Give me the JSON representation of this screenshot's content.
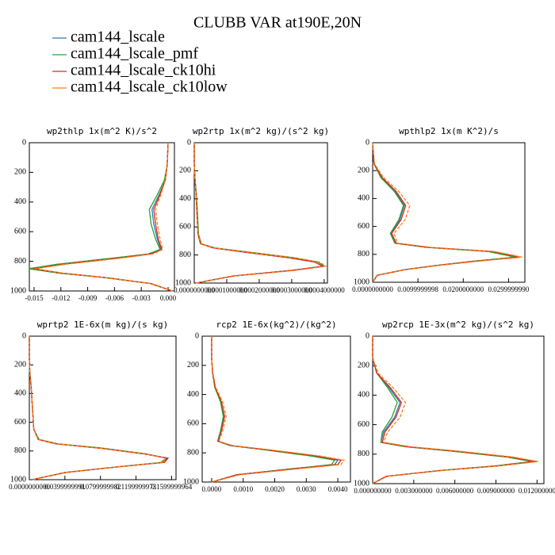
{
  "title": "CLUBB VAR at190E,20N",
  "legend": [
    {
      "name": "cam144_lscale",
      "color": "#2b7bb9"
    },
    {
      "name": "cam144_lscale_pmf",
      "color": "#2ca02c"
    },
    {
      "name": "cam144_lscale_ck10hi",
      "color": "#d62728"
    },
    {
      "name": "cam144_lscale_ck10low",
      "color": "#ff7f0e"
    }
  ],
  "chart_data": [
    {
      "type": "line",
      "title": "wp2thlp  1x(m^2 K)/s^2",
      "y_reversed": true,
      "y": [
        0,
        150,
        250,
        350,
        450,
        550,
        650,
        720,
        750,
        780,
        820,
        850,
        880,
        910,
        950,
        1000
      ],
      "ylim": [
        0,
        1000
      ],
      "yticks": [
        0,
        200,
        400,
        600,
        800,
        1000
      ],
      "xlim": [
        -0.01553,
        0.00071
      ],
      "xticks": [
        -0.015,
        -0.012,
        -0.009,
        -0.006,
        -0.003,
        {
          "value": 0,
          "label": "0.000"
        }
      ],
      "series": [
        {
          "values": [
            0,
            -0.0001,
            -0.0003,
            -0.001,
            -0.0018,
            -0.0016,
            -0.0012,
            -0.0008,
            -0.002,
            -0.006,
            -0.012,
            -0.0152,
            -0.012,
            -0.007,
            -0.002,
            0.0005
          ]
        },
        {
          "values": [
            0,
            -0.0001,
            -0.0004,
            -0.0012,
            -0.0021,
            -0.0019,
            -0.0014,
            -0.0009,
            -0.0022,
            -0.0065,
            -0.0125,
            -0.0156,
            -0.0122,
            -0.0071,
            -0.002,
            0.0005
          ]
        },
        {
          "values": [
            0,
            -0.0001,
            -0.0003,
            -0.0009,
            -0.0016,
            -0.0014,
            -0.0011,
            -0.0007,
            -0.0019,
            -0.0058,
            -0.0118,
            -0.015,
            -0.0118,
            -0.0069,
            -0.0019,
            0.0005
          ]
        },
        {
          "values": [
            0,
            -0.0001,
            -0.0003,
            -0.0008,
            -0.0014,
            -0.0012,
            -0.0009,
            -0.0006,
            -0.0017,
            -0.0055,
            -0.0115,
            -0.0149,
            -0.0119,
            -0.007,
            -0.002,
            0.0005
          ]
        }
      ]
    },
    {
      "type": "line",
      "title": "wp2rtp  1x(m^2 kg)/(s^2 kg)",
      "y_reversed": true,
      "y": [
        0,
        150,
        250,
        350,
        450,
        550,
        650,
        720,
        750,
        780,
        820,
        850,
        880,
        910,
        950,
        1000
      ],
      "ylim": [
        0,
        1000
      ],
      "yticks": [
        0,
        200,
        400,
        600,
        800,
        1000
      ],
      "xlim": [
        0,
        0.00041
      ],
      "xticks": [
        {
          "value": 0,
          "label": "0.0000000000"
        },
        {
          "value": 0.0001,
          "label": "0.0001000000"
        },
        {
          "value": 0.0002,
          "label": "0.0002000000"
        },
        {
          "value": 0.0003,
          "label": "0.0003000000"
        },
        {
          "value": 0.0004,
          "label": "0.0004000000"
        }
      ],
      "series": [
        {
          "values": [
            0,
            0,
            2e-06,
            5e-06,
            8e-06,
            1e-05,
            1.2e-05,
            2e-05,
            6e-05,
            0.00016,
            0.0003,
            0.00038,
            0.0004,
            0.0003,
            0.00012,
            5e-06
          ]
        },
        {
          "values": [
            0,
            0,
            2e-06,
            6e-06,
            9e-06,
            1.1e-05,
            1.3e-05,
            2.2e-05,
            6.5e-05,
            0.00017,
            0.00031,
            0.00038,
            0.0004,
            0.0003,
            0.00012,
            5e-06
          ]
        },
        {
          "values": [
            0,
            0,
            2e-06,
            5e-06,
            7e-06,
            9e-06,
            1.1e-05,
            1.9e-05,
            5.8e-05,
            0.000155,
            0.00029,
            0.00037,
            0.000395,
            0.0003,
            0.00012,
            5e-06
          ]
        },
        {
          "values": [
            0,
            0,
            2e-06,
            5e-06,
            7e-06,
            9e-06,
            1.2e-05,
            2.1e-05,
            6.2e-05,
            0.000165,
            0.000305,
            0.000385,
            0.000405,
            0.00031,
            0.000125,
            5e-06
          ]
        }
      ]
    },
    {
      "type": "line",
      "title": "wpthlp2  1x(m K^2)/s",
      "y_reversed": true,
      "y": [
        0,
        150,
        250,
        350,
        450,
        550,
        650,
        720,
        750,
        780,
        820,
        850,
        880,
        910,
        950,
        1000
      ],
      "ylim": [
        0,
        1000
      ],
      "yticks": [
        0,
        200,
        400,
        600,
        800,
        1000
      ],
      "xlim": [
        0,
        0.0336
      ],
      "xticks": [
        {
          "value": 0,
          "label": "0.0000000000"
        },
        {
          "value": 0.01,
          "label": "0.0099999998"
        },
        {
          "value": 0.02,
          "label": "0.0200000000"
        },
        {
          "value": 0.03,
          "label": "0.0299999990"
        }
      ],
      "series": [
        {
          "values": [
            0,
            0.0003,
            0.002,
            0.005,
            0.007,
            0.006,
            0.004,
            0.005,
            0.012,
            0.026,
            0.032,
            0.022,
            0.014,
            0.007,
            0.001,
            0
          ]
        },
        {
          "values": [
            0,
            0.0003,
            0.0018,
            0.0048,
            0.0068,
            0.0058,
            0.0039,
            0.0049,
            0.0118,
            0.0255,
            0.0315,
            0.0218,
            0.0139,
            0.007,
            0.001,
            0
          ]
        },
        {
          "values": [
            0,
            0.0003,
            0.0021,
            0.0052,
            0.0073,
            0.0063,
            0.0042,
            0.0052,
            0.0124,
            0.0265,
            0.0325,
            0.0224,
            0.0141,
            0.0071,
            0.001,
            0
          ]
        },
        {
          "values": [
            0,
            0.0004,
            0.0024,
            0.0058,
            0.0082,
            0.0072,
            0.0047,
            0.0055,
            0.013,
            0.027,
            0.033,
            0.023,
            0.0145,
            0.0073,
            0.0011,
            0
          ]
        }
      ]
    },
    {
      "type": "line",
      "title": "wprtp2  1E-6x(m kg)/(s kg)",
      "y_reversed": true,
      "y": [
        0,
        150,
        250,
        350,
        450,
        550,
        650,
        720,
        750,
        780,
        820,
        850,
        880,
        910,
        950,
        1000
      ],
      "ylim": [
        0,
        1000
      ],
      "yticks": [
        0,
        200,
        400,
        600,
        800,
        1000
      ],
      "xlim": [
        0,
        0.165
      ],
      "xticks": [
        {
          "value": 0,
          "label": "0.0000000000"
        },
        {
          "value": 0.04,
          "label": "0.0399999991"
        },
        {
          "value": 0.08,
          "label": "0.0799999982"
        },
        {
          "value": 0.12,
          "label": "0.1199999973"
        },
        {
          "value": 0.16,
          "label": "0.1599999964"
        }
      ],
      "series": [
        {
          "values": [
            0,
            0,
            0.0005,
            0.002,
            0.003,
            0.004,
            0.005,
            0.01,
            0.03,
            0.08,
            0.13,
            0.155,
            0.15,
            0.1,
            0.04,
            0.003
          ]
        },
        {
          "values": [
            0,
            0,
            0.0005,
            0.002,
            0.003,
            0.004,
            0.005,
            0.011,
            0.032,
            0.082,
            0.131,
            0.154,
            0.148,
            0.099,
            0.04,
            0.003
          ]
        },
        {
          "values": [
            0,
            0,
            0.0005,
            0.002,
            0.003,
            0.004,
            0.005,
            0.01,
            0.029,
            0.078,
            0.128,
            0.156,
            0.152,
            0.101,
            0.041,
            0.003
          ]
        },
        {
          "values": [
            0,
            0,
            0.0005,
            0.002,
            0.003,
            0.004,
            0.005,
            0.01,
            0.03,
            0.079,
            0.129,
            0.153,
            0.151,
            0.1,
            0.04,
            0.003
          ]
        }
      ]
    },
    {
      "type": "line",
      "title": "rcp2  1E-6x(kg^2)/(kg^2)",
      "y_reversed": true,
      "y": [
        0,
        150,
        250,
        350,
        450,
        550,
        650,
        720,
        750,
        780,
        820,
        850,
        880,
        910,
        950,
        1000
      ],
      "ylim": [
        0,
        1000
      ],
      "yticks": [
        0,
        200,
        400,
        600,
        800,
        1000
      ],
      "xlim": [
        -0.0003,
        0.0044
      ],
      "xticks": [
        {
          "value": 0,
          "label": "0.0000"
        },
        {
          "value": 0.001,
          "label": "0.0010"
        },
        {
          "value": 0.002,
          "label": "0.0020"
        },
        {
          "value": 0.003,
          "label": "0.0030"
        },
        {
          "value": 0.004,
          "label": "0.0040"
        }
      ],
      "series": [
        {
          "values": [
            0,
            0,
            3e-05,
            0.0001,
            0.0003,
            0.0004,
            0.0003,
            0.0002,
            0.0006,
            0.0018,
            0.0032,
            0.004,
            0.0039,
            0.0025,
            0.0008,
            0
          ]
        },
        {
          "values": [
            0,
            0,
            3e-05,
            0.0001,
            0.00028,
            0.00037,
            0.00028,
            0.00019,
            0.00058,
            0.0017,
            0.0031,
            0.0039,
            0.0038,
            0.0025,
            0.0008,
            0
          ]
        },
        {
          "values": [
            0,
            0,
            3e-05,
            0.00011,
            0.00031,
            0.00041,
            0.00031,
            0.00021,
            0.00062,
            0.0018,
            0.0033,
            0.0041,
            0.004,
            0.0026,
            0.0008,
            0
          ]
        },
        {
          "values": [
            0,
            0,
            4e-05,
            0.00013,
            0.00035,
            0.00046,
            0.00035,
            0.00023,
            0.00066,
            0.0019,
            0.0034,
            0.0042,
            0.0041,
            0.0027,
            0.0009,
            0
          ]
        }
      ]
    },
    {
      "type": "line",
      "title": "wp2rcp  1E-3x(m^2 kg)/(s^2 kg)",
      "y_reversed": true,
      "y": [
        0,
        150,
        250,
        350,
        450,
        550,
        650,
        720,
        750,
        780,
        820,
        850,
        880,
        910,
        950,
        1000
      ],
      "ylim": [
        0,
        1000
      ],
      "yticks": [
        0,
        200,
        400,
        600,
        800,
        1000
      ],
      "xlim": [
        0,
        0.0125
      ],
      "xticks": [
        {
          "value": 0,
          "label": "0.000000000"
        },
        {
          "value": 0.003,
          "label": "0.003000000"
        },
        {
          "value": 0.006,
          "label": "0.006000000"
        },
        {
          "value": 0.009,
          "label": "0.009000000"
        },
        {
          "value": 0.012,
          "label": "0.012000000"
        }
      ],
      "series": [
        {
          "values": [
            0,
            0,
            0.0003,
            0.0012,
            0.002,
            0.0016,
            0.0008,
            0.0006,
            0.0025,
            0.006,
            0.01,
            0.0118,
            0.009,
            0.005,
            0.001,
            0
          ]
        },
        {
          "values": [
            0,
            0,
            0.0003,
            0.0011,
            0.0018,
            0.0014,
            0.0007,
            0.0006,
            0.0024,
            0.0058,
            0.0098,
            0.0116,
            0.0089,
            0.005,
            0.001,
            0
          ]
        },
        {
          "values": [
            0,
            0,
            0.0003,
            0.0013,
            0.0021,
            0.0017,
            0.0009,
            0.0007,
            0.0026,
            0.0061,
            0.0101,
            0.0119,
            0.0091,
            0.0051,
            0.001,
            0
          ]
        },
        {
          "values": [
            0,
            0,
            0.0004,
            0.0015,
            0.0024,
            0.002,
            0.0011,
            0.0008,
            0.0028,
            0.0063,
            0.0103,
            0.0121,
            0.0092,
            0.0052,
            0.0011,
            0
          ]
        }
      ]
    }
  ]
}
